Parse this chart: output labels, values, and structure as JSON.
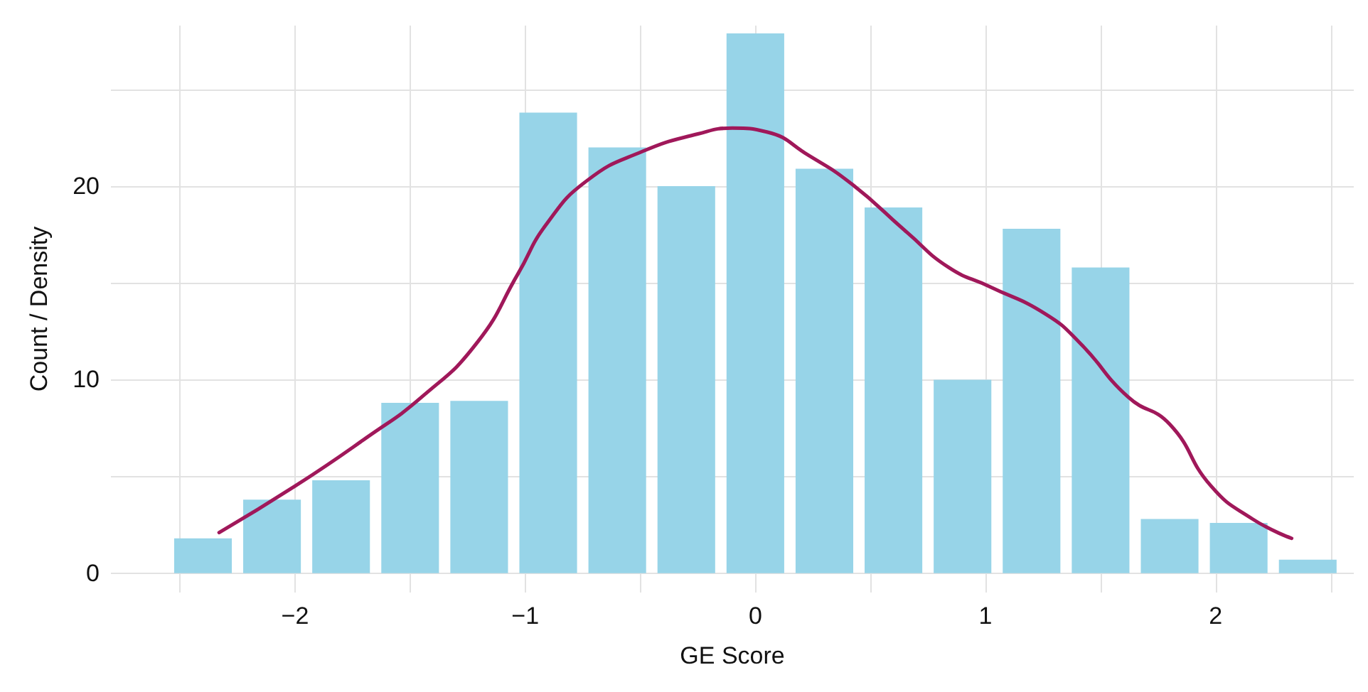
{
  "chart_data": {
    "type": "histogram",
    "xlabel": "GE Score",
    "ylabel": "Count / Density",
    "bins": [
      -2.55,
      -2.25,
      -1.95,
      -1.65,
      -1.35,
      -1.05,
      -0.75,
      -0.45,
      -0.15,
      0.15,
      0.45,
      0.75,
      1.05,
      1.35,
      1.65,
      1.95,
      2.25,
      2.55
    ],
    "series": [
      {
        "color": "#97d4e8",
        "values": [
          1.8,
          3.8,
          4.8,
          8.8,
          8.9,
          23.8,
          22,
          20,
          27.9,
          20.9,
          18.9,
          10,
          17.8,
          15.8,
          2.8,
          2.6,
          0.7
        ]
      },
      {
        "type": "line",
        "color": "#a0185a",
        "x": [
          -2.33,
          -2,
          -1.69,
          -1.45,
          -1.21,
          -1.03,
          -0.91,
          -0.73,
          -0.49,
          -0.25,
          -0.1,
          0.05,
          0.23,
          0.42,
          0.66,
          0.84,
          1.02,
          1.26,
          1.41,
          1.62,
          1.8,
          1.98,
          2.16,
          2.33
        ],
        "values": [
          2.1,
          4.5,
          7,
          9.1,
          11.9,
          15.5,
          18,
          20.3,
          21.8,
          22.7,
          23,
          22.8,
          21.6,
          20.1,
          17.6,
          15.8,
          14.8,
          13.4,
          11.9,
          9.1,
          7.7,
          4.5,
          2.8,
          1.8
        ]
      }
    ],
    "xlim": [
      -2.8,
      2.6
    ],
    "ylim": [
      -1,
      28.3
    ],
    "xticks": [
      {
        "value": -2.5,
        "label": null
      },
      {
        "value": -2,
        "label": "−2"
      },
      {
        "value": -1.5,
        "label": null
      },
      {
        "value": -1,
        "label": "−1"
      },
      {
        "value": -0.5,
        "label": null
      },
      0,
      {
        "value": 0.5,
        "label": null
      },
      1,
      {
        "value": 1.5,
        "label": null
      },
      2,
      {
        "value": 2.5,
        "label": null
      }
    ],
    "yticks": [
      0,
      {
        "value": 5,
        "label": null
      },
      10,
      {
        "value": 15,
        "label": null
      },
      20,
      {
        "value": 25,
        "label": null
      }
    ],
    "grid": true,
    "marker": "none",
    "line_style": "solid"
  }
}
